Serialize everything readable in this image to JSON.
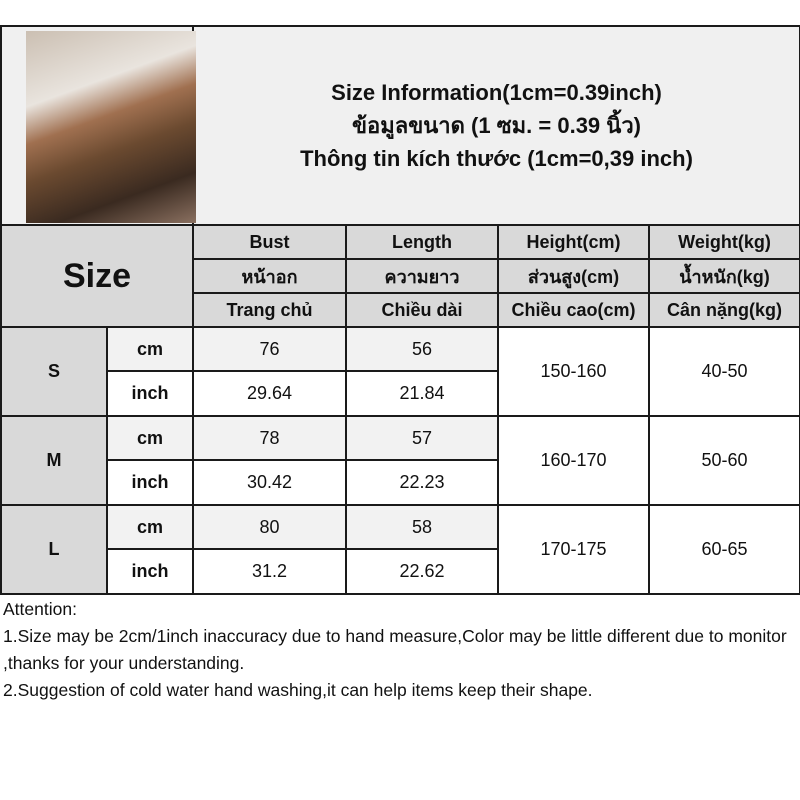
{
  "title_lines": [
    "Size Information(1cm=0.39inch)",
    "ข้อมูลขนาด (1 ซม. = 0.39 นิ้ว)",
    "Thông tin kích thước (1cm=0,39 inch)"
  ],
  "size_label": "Size",
  "headers": [
    [
      "Bust",
      "หน้าอก",
      "Trang chủ"
    ],
    [
      "Length",
      "ความยาว",
      "Chiều dài"
    ],
    [
      "Height(cm)",
      "ส่วนสูง(cm)",
      "Chiều cao(cm)"
    ],
    [
      "Weight(kg)",
      "น้ำหนัก(kg)",
      "Cân nặng(kg)"
    ]
  ],
  "rows": [
    {
      "size": "S",
      "cm_label": "cm",
      "inch_label": "inch",
      "bust_cm": "76",
      "length_cm": "56",
      "bust_inch": "29.64",
      "length_inch": "21.84",
      "height": "150-160",
      "weight": "40-50"
    },
    {
      "size": "M",
      "cm_label": "cm",
      "inch_label": "inch",
      "bust_cm": "78",
      "length_cm": "57",
      "bust_inch": "30.42",
      "length_inch": "22.23",
      "height": "160-170",
      "weight": "50-60"
    },
    {
      "size": "L",
      "cm_label": "cm",
      "inch_label": "inch",
      "bust_cm": "80",
      "length_cm": "58",
      "bust_inch": "31.2",
      "length_inch": "22.62",
      "height": "170-175",
      "weight": "60-65"
    }
  ],
  "notes": [
    "Attention:",
    "1.Size may be 2cm/1inch inaccuracy due to hand measure,Color may be little different due to monitor ,thanks for your understanding.",
    "2.Suggestion of cold water hand washing,it can help items keep their shape."
  ]
}
